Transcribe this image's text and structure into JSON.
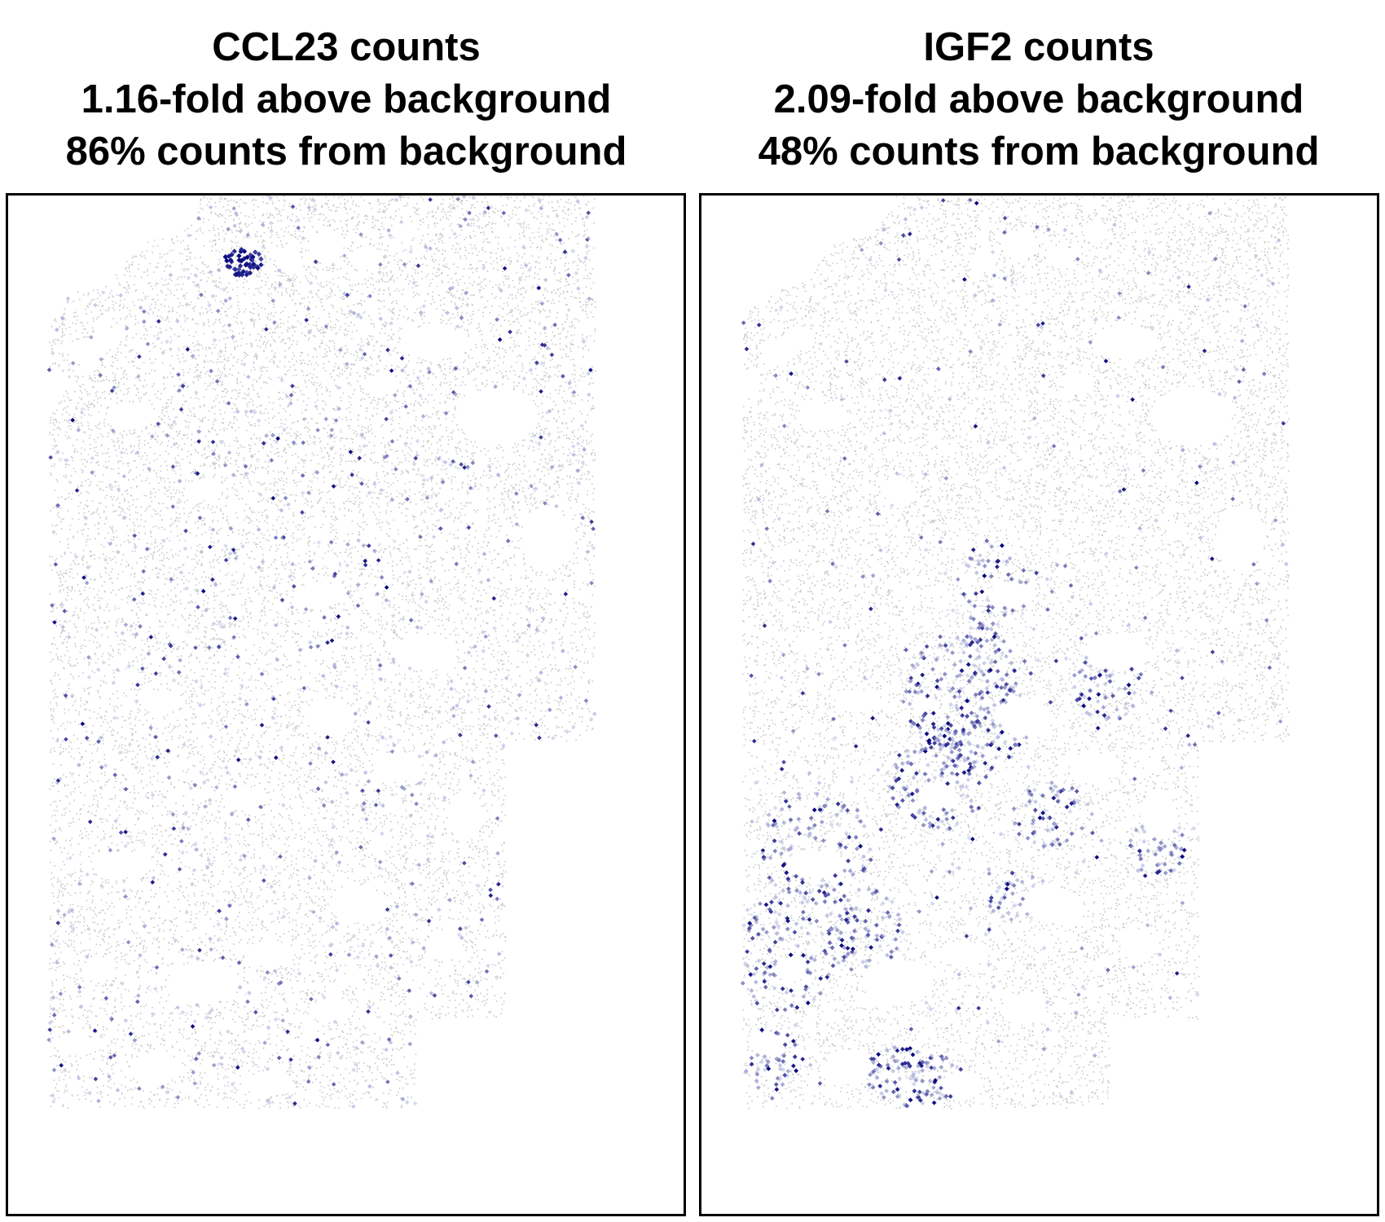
{
  "colors": {
    "background_cells": "#c8c8c8",
    "count_low": "#b8bde0",
    "count_high": "#00007a",
    "frame": "#000000"
  },
  "chart_data": [
    {
      "type": "scatter",
      "title_lines": [
        "CCL23 counts",
        "1.16-fold above background",
        "86% counts from background"
      ],
      "gene": "CCL23",
      "fold_above_background": 1.16,
      "percent_counts_from_background": 86,
      "grid": false,
      "legend": "none",
      "axes_shown": false,
      "background_color": "#c8c8c8",
      "count_color_range": [
        "#b8bde0",
        "#00007a"
      ],
      "distribution": "sparse, roughly uniform across tissue; one dense hotspot near top crypts"
    },
    {
      "type": "scatter",
      "title_lines": [
        "IGF2 counts",
        "2.09-fold above background",
        "48% counts from background"
      ],
      "gene": "IGF2",
      "fold_above_background": 2.09,
      "percent_counts_from_background": 48,
      "grid": false,
      "legend": "none",
      "axes_shown": false,
      "background_color": "#c8c8c8",
      "count_color_range": [
        "#b8bde0",
        "#00007a"
      ],
      "distribution": "clustered in central and lower-left tissue regions"
    }
  ]
}
